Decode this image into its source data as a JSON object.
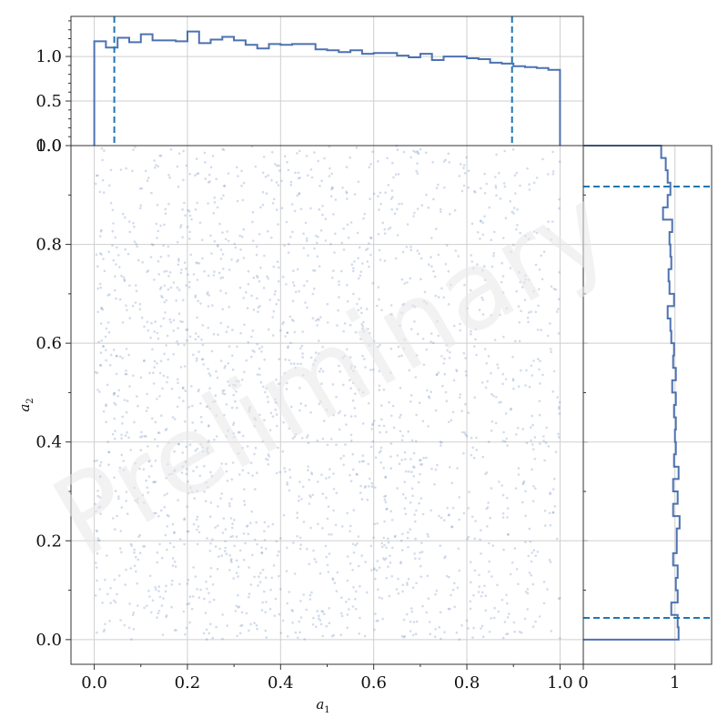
{
  "watermark": "Preliminary",
  "colors": {
    "series": "#4c72b0",
    "marker": "#1f77b4",
    "grid": "#cfcfcf"
  },
  "chart_data": [
    {
      "type": "scatter",
      "panel": "joint",
      "xlabel_base": "a",
      "xlabel_sub": "1",
      "ylabel_base": "a",
      "ylabel_sub": "2",
      "xlim": [
        -0.05,
        1.05
      ],
      "ylim": [
        -0.05,
        1.0
      ],
      "xticks": [
        0.0,
        0.2,
        0.4,
        0.6,
        0.8,
        1.0
      ],
      "xtick_labels": [
        "0.0",
        "0.2",
        "0.4",
        "0.6",
        "0.8",
        "1.0"
      ],
      "yticks": [
        0.0,
        0.2,
        0.4,
        0.6,
        0.8,
        1.0
      ],
      "ytick_labels": [
        "0.0",
        "0.2",
        "0.4",
        "0.6",
        "0.8",
        "1.0"
      ],
      "grid": true,
      "point_count_visual": 2200,
      "point_alpha": 0.25,
      "a1_range": [
        0.0,
        1.0
      ],
      "a2_range": [
        0.0,
        1.0
      ]
    },
    {
      "type": "histogram",
      "panel": "top-marginal",
      "variable": "a1",
      "bin_edges_start": 0.0,
      "bin_edges_end": 1.0,
      "bins": 40,
      "values": [
        1.17,
        1.1,
        1.21,
        1.16,
        1.25,
        1.18,
        1.18,
        1.17,
        1.28,
        1.15,
        1.19,
        1.22,
        1.18,
        1.13,
        1.09,
        1.14,
        1.13,
        1.14,
        1.14,
        1.08,
        1.07,
        1.05,
        1.07,
        1.03,
        1.04,
        1.04,
        1.01,
        0.99,
        1.03,
        0.96,
        1.0,
        1.0,
        0.98,
        0.97,
        0.93,
        0.92,
        0.89,
        0.88,
        0.87,
        0.85
      ],
      "ylim": [
        0.0,
        1.45
      ],
      "yticks": [
        0.0,
        0.5,
        1.0
      ],
      "ytick_labels": [
        "0.0",
        "0.5",
        "1.0"
      ],
      "markers_x": [
        0.043,
        0.897
      ]
    },
    {
      "type": "histogram",
      "panel": "right-marginal",
      "variable": "a2",
      "orientation": "horizontal",
      "bin_edges_start": 0.0,
      "bin_edges_end": 1.0,
      "bins": 40,
      "values": [
        1.04,
        1.03,
        0.96,
        1.03,
        1.01,
        1.03,
        0.98,
        1.02,
        1.02,
        1.05,
        0.98,
        1.03,
        0.98,
        1.04,
        0.99,
        1.01,
        1.0,
        1.01,
        0.99,
        1.01,
        0.97,
        1.01,
        0.98,
        0.99,
        0.96,
        0.95,
        0.92,
        0.99,
        0.94,
        0.93,
        0.96,
        0.95,
        0.94,
        0.97,
        0.87,
        0.92,
        0.95,
        0.92,
        0.9,
        0.85
      ],
      "xlim": [
        0.0,
        1.4
      ],
      "xticks": [
        0,
        1
      ],
      "xtick_labels": [
        "0",
        "1"
      ],
      "markers_y": [
        0.044,
        0.917
      ]
    }
  ]
}
